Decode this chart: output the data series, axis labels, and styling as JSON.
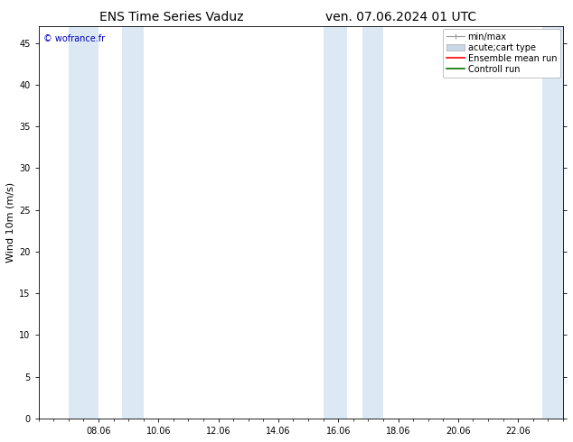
{
  "title_left": "ENS Time Series Vaduz",
  "title_right": "ven. 07.06.2024 01 UTC",
  "ylabel": "Wind 10m (m/s)",
  "ylim": [
    0,
    47
  ],
  "yticks": [
    0,
    5,
    10,
    15,
    20,
    25,
    30,
    35,
    40,
    45
  ],
  "x_tick_labels": [
    "08.06",
    "10.06",
    "12.06",
    "14.06",
    "16.06",
    "18.06",
    "20.06",
    "22.06"
  ],
  "x_tick_positions": [
    2,
    4,
    6,
    8,
    10,
    12,
    14,
    16
  ],
  "xlim": [
    0,
    17.5
  ],
  "background_color": "#ffffff",
  "plot_bg_color": "#ffffff",
  "shaded_bands": [
    {
      "xmin": 1.0,
      "xmax": 2.0,
      "color": "#dce9f5"
    },
    {
      "xmin": 2.8,
      "xmax": 3.5,
      "color": "#dce9f5"
    },
    {
      "xmin": 9.5,
      "xmax": 10.3,
      "color": "#dce9f5"
    },
    {
      "xmin": 10.8,
      "xmax": 11.5,
      "color": "#dce9f5"
    },
    {
      "xmin": 16.8,
      "xmax": 17.5,
      "color": "#dce9f5"
    }
  ],
  "watermark_text": "© wofrance.fr",
  "watermark_color": "#0000bb",
  "legend_entries": [
    {
      "label": "min/max",
      "color": "#aaaaaa",
      "style": "errorbar"
    },
    {
      "label": "acute;cart type",
      "color": "#c8d8e8",
      "style": "box"
    },
    {
      "label": "Ensemble mean run",
      "color": "#ff0000",
      "style": "line"
    },
    {
      "label": "Controll run",
      "color": "#007700",
      "style": "line"
    }
  ],
  "tick_color": "#000000",
  "spine_color": "#000000",
  "font_size_title": 10,
  "font_size_axis": 8,
  "font_size_tick": 7,
  "font_size_legend": 7,
  "font_size_watermark": 7
}
